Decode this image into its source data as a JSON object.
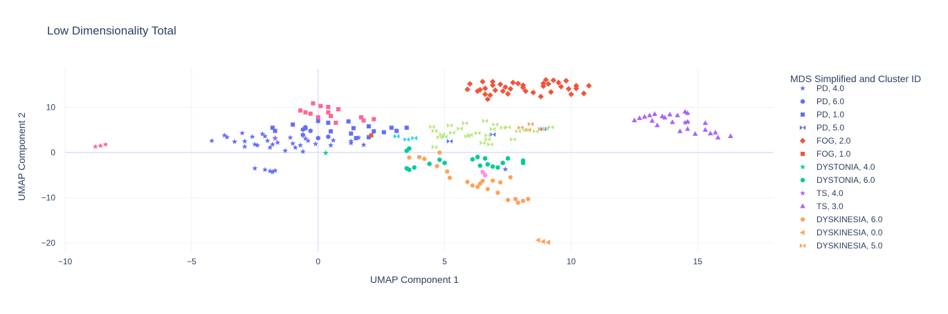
{
  "chart_data": {
    "type": "scatter",
    "title": "Low Dimensionality Total",
    "xlabel": "UMAP Component 1",
    "ylabel": "UMAP Component 2",
    "xlim": [
      -10,
      18
    ],
    "ylim": [
      -22,
      18.5
    ],
    "xticks": [
      -10,
      -5,
      0,
      5,
      10,
      15
    ],
    "yticks": [
      -20,
      -10,
      0,
      10
    ],
    "grid": true,
    "zeroline": true,
    "legend_title": "MDS Simplified and Cluster ID",
    "legend_position": "right",
    "series": [
      {
        "name": "PD, 4.0",
        "color": "#636efa",
        "symbol": "star",
        "points": [
          [
            -4.2,
            2.6
          ],
          [
            -3.7,
            3.8
          ],
          [
            -3.6,
            3.4
          ],
          [
            -3.3,
            2.4
          ],
          [
            -3.0,
            4.3
          ],
          [
            -2.9,
            2.5
          ],
          [
            -2.9,
            1.3
          ],
          [
            -2.6,
            3.5
          ],
          [
            -2.5,
            1.8
          ],
          [
            -2.4,
            1.6
          ],
          [
            -2.2,
            4.1
          ],
          [
            -2.1,
            3.6
          ],
          [
            -2.0,
            2.6
          ],
          [
            -1.9,
            1.1
          ],
          [
            -1.8,
            1.8
          ],
          [
            -1.7,
            3.2
          ],
          [
            -1.6,
            2.2
          ],
          [
            -1.3,
            0.4
          ],
          [
            -1.1,
            3.3
          ],
          [
            -1.0,
            2.0
          ],
          [
            -0.9,
            1.1
          ],
          [
            -0.7,
            1.6
          ],
          [
            -0.6,
            0.2
          ],
          [
            -0.5,
            3.1
          ],
          [
            -0.4,
            2.6
          ],
          [
            -0.1,
            1.9
          ],
          [
            0.5,
            1.6
          ],
          [
            0.6,
            2.7
          ],
          [
            1.3,
            2.5
          ],
          [
            1.3,
            2.1
          ],
          [
            1.6,
            3.3
          ],
          [
            1.8,
            1.7
          ],
          [
            -2.5,
            -3.5
          ],
          [
            -2.1,
            -3.8
          ],
          [
            -1.9,
            -4.1
          ],
          [
            -1.8,
            -4.3
          ],
          [
            -1.7,
            -4.0
          ],
          [
            7.4,
            -3.7
          ]
        ]
      },
      {
        "name": "PD, 6.0",
        "color": "#636efa",
        "symbol": "hexagon",
        "points": [
          [
            -0.5,
            5.6
          ],
          [
            -0.6,
            5.1
          ],
          [
            -0.6,
            3.9
          ],
          [
            -0.3,
            4.8
          ],
          [
            0.0,
            3.2
          ],
          [
            0.4,
            3.5
          ]
        ]
      },
      {
        "name": "PD, 1.0",
        "color": "#636efa",
        "symbol": "square",
        "points": [
          [
            -1.8,
            5.5
          ],
          [
            -1.7,
            4.8
          ],
          [
            -1.0,
            6.2
          ],
          [
            -0.5,
            5.4
          ],
          [
            0.0,
            7.0
          ],
          [
            0.4,
            6.6
          ],
          [
            0.5,
            4.7
          ],
          [
            1.2,
            6.9
          ],
          [
            1.3,
            4.2
          ],
          [
            1.4,
            5.4
          ],
          [
            1.5,
            3.2
          ],
          [
            2.0,
            3.4
          ],
          [
            2.0,
            5.8
          ],
          [
            2.2,
            4.7
          ],
          [
            2.6,
            4.5
          ],
          [
            2.9,
            5.5
          ],
          [
            3.1,
            4.8
          ],
          [
            3.5,
            5.5
          ]
        ]
      },
      {
        "name": "PD, 5.0",
        "color": "#636efa",
        "symbol": "bowtie",
        "points": [
          [
            5.2,
            2.5
          ],
          [
            6.9,
            4.0
          ],
          [
            8.9,
            5.2
          ]
        ]
      },
      {
        "name": "FOG, 2.0",
        "color": "#ef553b",
        "symbol": "diamond",
        "points": [
          [
            5.9,
            14.0
          ],
          [
            6.0,
            15.2
          ],
          [
            6.3,
            13.6
          ],
          [
            6.4,
            13.9
          ],
          [
            6.5,
            15.7
          ],
          [
            6.6,
            14.2
          ],
          [
            6.6,
            12.9
          ],
          [
            6.7,
            11.8
          ],
          [
            6.8,
            12.7
          ],
          [
            6.9,
            15.7
          ],
          [
            6.9,
            14.9
          ],
          [
            7.0,
            13.8
          ],
          [
            7.2,
            15.1
          ],
          [
            7.3,
            13.6
          ],
          [
            7.4,
            14.5
          ],
          [
            7.5,
            13.0
          ],
          [
            7.6,
            14.1
          ],
          [
            7.7,
            15.5
          ],
          [
            7.9,
            15.3
          ],
          [
            8.1,
            14.9
          ],
          [
            8.2,
            13.6
          ],
          [
            8.1,
            14.4
          ],
          [
            8.5,
            13.3
          ],
          [
            8.8,
            12.4
          ],
          [
            8.9,
            15.3
          ],
          [
            8.9,
            14.7
          ],
          [
            9.0,
            16.1
          ],
          [
            9.1,
            15.2
          ],
          [
            9.2,
            13.4
          ],
          [
            9.3,
            16.0
          ],
          [
            9.5,
            15.5
          ],
          [
            9.6,
            14.6
          ],
          [
            9.8,
            15.9
          ],
          [
            9.9,
            14.1
          ],
          [
            10.0,
            12.9
          ],
          [
            10.2,
            14.8
          ],
          [
            10.2,
            14.2
          ],
          [
            10.5,
            13.1
          ],
          [
            10.7,
            14.8
          ]
        ]
      },
      {
        "name": "FOG, 1.0",
        "color": "#ef553b",
        "symbol": "square",
        "points": [
          [
            2.1,
            3.8
          ]
        ]
      },
      {
        "name": "DYSTONIA, 4.0",
        "color": "#00cc96",
        "symbol": "star",
        "points": [
          [
            0.3,
            -0.1
          ]
        ]
      },
      {
        "name": "DYSTONIA, 6.0",
        "color": "#00cc96",
        "symbol": "hexagon",
        "points": [
          [
            3.5,
            0.4
          ],
          [
            3.6,
            0.9
          ],
          [
            3.5,
            -3.5
          ],
          [
            3.6,
            -3.8
          ],
          [
            3.8,
            -3.3
          ],
          [
            4.4,
            -2.5
          ],
          [
            4.8,
            -1.6
          ],
          [
            5.0,
            -2.3
          ],
          [
            6.1,
            -1.5
          ],
          [
            6.3,
            -1.0
          ],
          [
            6.4,
            -2.9
          ],
          [
            6.6,
            -1.3
          ],
          [
            6.7,
            -2.6
          ],
          [
            6.9,
            -3.1
          ],
          [
            7.1,
            -3.3
          ],
          [
            7.3,
            -2.3
          ],
          [
            7.5,
            -1.3
          ],
          [
            8.1,
            -1.8
          ],
          [
            8.1,
            -2.3
          ]
        ]
      },
      {
        "name": "TS, 4.0",
        "color": "#ab63fa",
        "symbol": "star",
        "points": [
          [
            -1.7,
            3.1
          ],
          [
            14.5,
            6.6
          ],
          [
            14.6,
            6.8
          ]
        ]
      },
      {
        "name": "TS, 3.0",
        "color": "#ab63fa",
        "symbol": "triangle",
        "points": [
          [
            12.5,
            7.1
          ],
          [
            12.7,
            7.6
          ],
          [
            12.9,
            7.9
          ],
          [
            13.1,
            8.2
          ],
          [
            13.2,
            7.0
          ],
          [
            13.3,
            8.5
          ],
          [
            13.4,
            6.0
          ],
          [
            13.6,
            8.0
          ],
          [
            13.7,
            7.7
          ],
          [
            13.9,
            8.4
          ],
          [
            14.0,
            6.7
          ],
          [
            14.2,
            8.2
          ],
          [
            14.3,
            4.7
          ],
          [
            14.5,
            9.0
          ],
          [
            14.6,
            8.7
          ],
          [
            14.6,
            6.8
          ],
          [
            14.6,
            5.2
          ],
          [
            14.9,
            4.1
          ],
          [
            15.3,
            6.5
          ],
          [
            15.3,
            5.0
          ],
          [
            15.5,
            4.2
          ],
          [
            15.7,
            4.4
          ],
          [
            15.8,
            3.3
          ],
          [
            16.3,
            3.6
          ]
        ]
      },
      {
        "name": "DYSKINESIA, 6.0",
        "color": "#ffa15a",
        "symbol": "circle",
        "points": [
          [
            3.6,
            -1.1
          ],
          [
            4.0,
            -1.0
          ],
          [
            4.2,
            -1.4
          ],
          [
            4.7,
            -3.0
          ],
          [
            4.8,
            0.0
          ],
          [
            5.1,
            -4.2
          ],
          [
            5.2,
            -5.6
          ],
          [
            5.9,
            -6.5
          ],
          [
            6.1,
            -7.3
          ],
          [
            6.3,
            -7.6
          ],
          [
            6.4,
            -6.9
          ],
          [
            6.5,
            -6.3
          ],
          [
            6.7,
            -8.1
          ],
          [
            6.9,
            -6.2
          ],
          [
            7.1,
            -8.9
          ],
          [
            7.2,
            -6.6
          ],
          [
            7.5,
            -10.5
          ],
          [
            7.6,
            -5.5
          ],
          [
            7.8,
            -10.3
          ],
          [
            7.9,
            -11.1
          ],
          [
            8.1,
            -10.7
          ],
          [
            8.3,
            -10.3
          ]
        ]
      },
      {
        "name": "DYSKINESIA, 0.0",
        "color": "#ffa15a",
        "symbol": "triangle-left",
        "points": [
          [
            8.7,
            -19.4
          ],
          [
            8.9,
            -19.7
          ],
          [
            9.1,
            -19.9
          ]
        ]
      },
      {
        "name": "DYSKINESIA, 5.0",
        "color": "#ffa15a",
        "symbol": "bowtie",
        "points": [
          [
            8.4,
            6.3
          ],
          [
            8.0,
            5.5
          ],
          [
            8.8,
            5.2
          ],
          [
            8.3,
            5.0
          ]
        ]
      },
      {
        "name": "",
        "color": "#19d3f3",
        "symbol": "bowtie",
        "points": [
          [
            3.1,
            3.6
          ],
          [
            3.5,
            2.9
          ],
          [
            3.8,
            3.2
          ]
        ]
      },
      {
        "name": "",
        "color": "#b6e880",
        "symbol": "bowtie",
        "points": [
          [
            4.5,
            5.7
          ],
          [
            4.6,
            4.8
          ],
          [
            4.8,
            3.4
          ],
          [
            4.9,
            4.0
          ],
          [
            5.0,
            3.5
          ],
          [
            5.2,
            6.0
          ],
          [
            5.3,
            4.4
          ],
          [
            5.6,
            5.3
          ],
          [
            5.8,
            6.5
          ],
          [
            5.9,
            3.6
          ],
          [
            6.0,
            3.9
          ],
          [
            6.3,
            4.3
          ],
          [
            6.5,
            2.1
          ],
          [
            6.6,
            7.0
          ],
          [
            6.7,
            3.8
          ],
          [
            6.8,
            1.8
          ],
          [
            6.9,
            5.2
          ],
          [
            7.0,
            6.2
          ],
          [
            7.3,
            5.5
          ],
          [
            7.5,
            5.6
          ],
          [
            7.7,
            2.9
          ],
          [
            7.9,
            4.7
          ],
          [
            8.2,
            5.0
          ],
          [
            8.6,
            4.7
          ],
          [
            9.0,
            5.3
          ],
          [
            9.2,
            5.6
          ],
          [
            4.6,
            1.2
          ],
          [
            6.7,
            2.9
          ]
        ]
      },
      {
        "name": "",
        "color": "#ff6692",
        "symbol": "square",
        "points": [
          [
            -0.7,
            9.3
          ],
          [
            -0.5,
            8.9
          ],
          [
            -0.3,
            8.6
          ],
          [
            -0.2,
            10.9
          ],
          [
            0.0,
            7.8
          ],
          [
            0.1,
            10.3
          ],
          [
            0.4,
            10.1
          ],
          [
            0.4,
            8.9
          ],
          [
            0.5,
            8.1
          ],
          [
            0.7,
            6.6
          ],
          [
            0.8,
            9.6
          ],
          [
            1.7,
            7.8
          ],
          [
            1.8,
            7.1
          ],
          [
            2.2,
            7.4
          ]
        ]
      },
      {
        "name": "",
        "color": "#ff6692",
        "symbol": "star",
        "points": [
          [
            -8.8,
            1.3
          ],
          [
            -8.6,
            1.5
          ],
          [
            -8.4,
            1.8
          ]
        ]
      },
      {
        "name": "",
        "color": "#fe8ef5",
        "symbol": "hexagon",
        "points": [
          [
            6.5,
            -4.3
          ],
          [
            6.6,
            -5.0
          ]
        ]
      }
    ]
  }
}
